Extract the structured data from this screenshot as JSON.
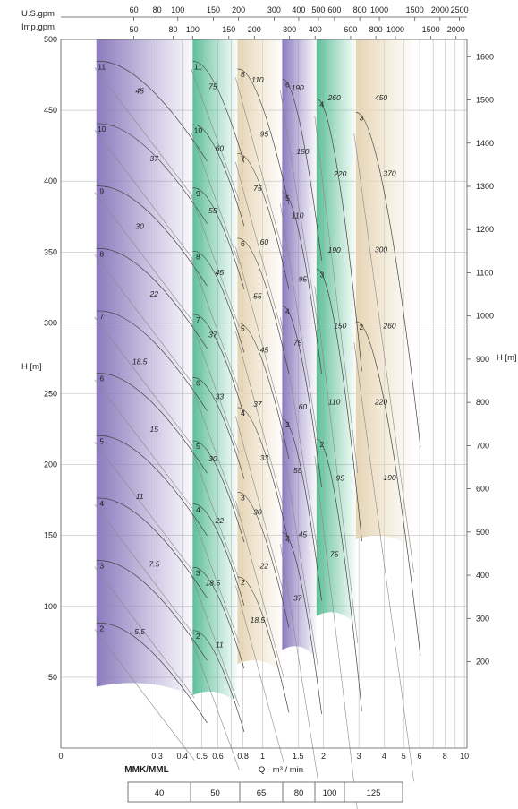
{
  "chart_data": {
    "type": "line",
    "top_labels": {
      "usgpm": "U.S.gpm",
      "impgpm": "Imp.gpm"
    },
    "usgpm_ticks": [
      "60",
      "80",
      "100",
      "150",
      "200",
      "300",
      "400",
      "500",
      "600",
      "800",
      "1000",
      "1500",
      "2000",
      "2500"
    ],
    "impgpm_ticks": [
      "50",
      "80",
      "100",
      "150",
      "200",
      "300",
      "400",
      "600",
      "800",
      "1000",
      "1500",
      "2000"
    ],
    "x_ticks": [
      "0",
      "0.3",
      "0.4",
      "0.5",
      "0.6",
      "0.8",
      "1",
      "1.5",
      "2",
      "3",
      "4",
      "5",
      "6",
      "8",
      "10"
    ],
    "y_left_label": "H [m]",
    "y_left_ticks": [
      50,
      100,
      150,
      200,
      250,
      300,
      350,
      400,
      450,
      500
    ],
    "y_right_label": "H [m]",
    "y_right_ticks": [
      200,
      300,
      400,
      500,
      600,
      700,
      800,
      900,
      1000,
      1100,
      1200,
      1300,
      1400,
      1500,
      1600
    ],
    "xlabel": "Q - m³ / min",
    "model_label": "MMK/MML",
    "sizes": [
      "40",
      "50",
      "65",
      "80",
      "100",
      "125"
    ],
    "colors": {
      "purple": "#8b7bbd",
      "green": "#5fbf9a",
      "beige": "#e6d5b5"
    },
    "bands": [
      {
        "size": "40",
        "color": "purple",
        "q_range": [
          0.15,
          0.45
        ],
        "h_range": [
          42,
          500
        ],
        "stages": [
          "11",
          "10",
          "9",
          "8",
          "7",
          "6",
          "5",
          "4",
          "3",
          "2"
        ],
        "powers": [
          "45",
          "37",
          "30",
          "22",
          "18.5",
          "15",
          "11",
          "7.5",
          "5.5"
        ]
      },
      {
        "size": "50",
        "color": "green",
        "q_range": [
          0.45,
          0.75
        ],
        "h_range": [
          36,
          500
        ],
        "stages": [
          "11",
          "10",
          "9",
          "8",
          "7",
          "6",
          "5",
          "4",
          "3",
          "2"
        ],
        "powers": [
          "75",
          "60",
          "55",
          "45",
          "37",
          "33",
          "30",
          "22",
          "18.5",
          "11"
        ]
      },
      {
        "size": "65",
        "color": "beige",
        "q_range": [
          0.75,
          1.25
        ],
        "h_range": [
          58,
          500
        ],
        "stages": [
          "8",
          "7",
          "6",
          "5",
          "4",
          "3",
          "2"
        ],
        "powers": [
          "110",
          "95",
          "75",
          "60",
          "55",
          "45",
          "37",
          "33",
          "30",
          "22",
          "18.5"
        ]
      },
      {
        "size": "80",
        "color": "purple",
        "q_range": [
          1.25,
          1.85
        ],
        "h_range": [
          68,
          500
        ],
        "stages": [
          "6",
          "5",
          "4",
          "3",
          "2"
        ],
        "powers": [
          "190",
          "150",
          "110",
          "95",
          "75",
          "60",
          "55",
          "45",
          "37"
        ]
      },
      {
        "size": "100",
        "color": "green",
        "q_range": [
          1.85,
          2.9
        ],
        "h_range": [
          92,
          500
        ],
        "stages": [
          "4",
          "3",
          "2"
        ],
        "powers": [
          "260",
          "220",
          "190",
          "150",
          "110",
          "95",
          "75"
        ]
      },
      {
        "size": "125",
        "color": "beige",
        "q_range": [
          2.9,
          5.5
        ],
        "h_range": [
          146,
          500
        ],
        "stages": [
          "3",
          "2"
        ],
        "powers": [
          "450",
          "370",
          "300",
          "260",
          "220",
          "190"
        ]
      }
    ]
  }
}
